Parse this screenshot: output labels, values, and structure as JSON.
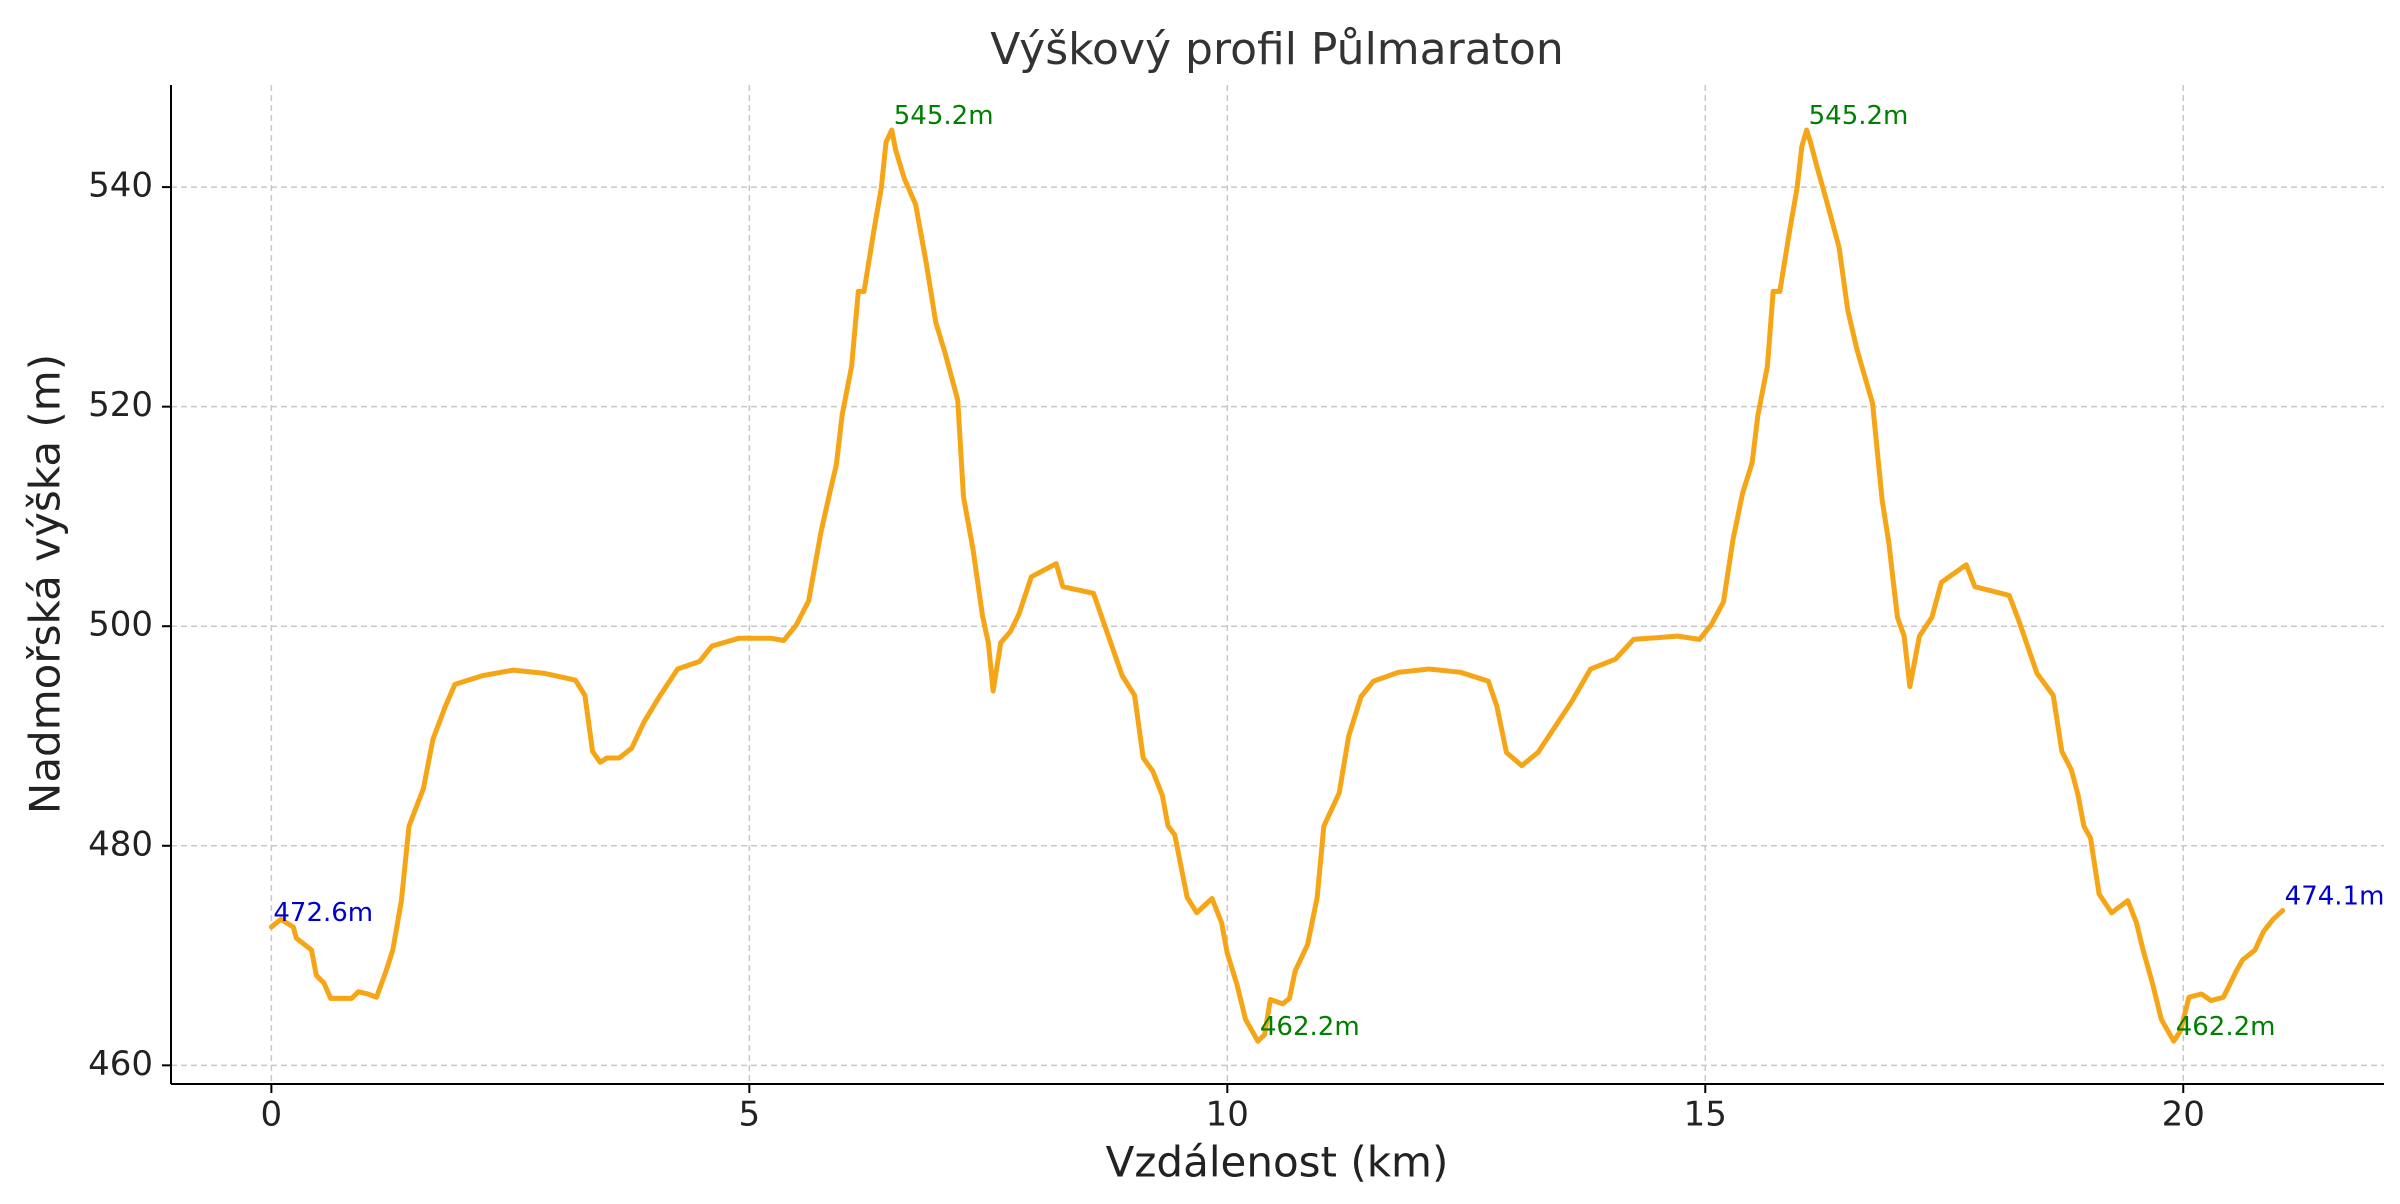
{
  "chart_data": {
    "type": "line",
    "title": "Výškový profil Půlmaraton",
    "xlabel": "Vzdálenost (km)",
    "ylabel": "Nadmořská výška (m)",
    "color": "#f5a516",
    "xlim": [
      -1.05,
      22.1
    ],
    "ylim": [
      458.3,
      549.3
    ],
    "xticks": [
      0,
      5,
      10,
      15,
      20
    ],
    "yticks": [
      460,
      480,
      500,
      520,
      540
    ],
    "grid": true,
    "x": [
      0,
      0.1,
      0.23,
      0.26,
      0.42,
      0.47,
      0.55,
      0.62,
      0.84,
      0.91,
      1.01,
      1.1,
      1.2,
      1.27,
      1.36,
      1.44,
      1.59,
      1.69,
      1.82,
      1.92,
      2.21,
      2.53,
      2.86,
      3.18,
      3.28,
      3.36,
      3.44,
      3.51,
      3.64,
      3.77,
      3.9,
      4.06,
      4.25,
      4.48,
      4.61,
      4.89,
      5.23,
      5.36,
      5.49,
      5.62,
      5.75,
      5.84,
      5.91,
      5.97,
      6.07,
      6.14,
      6.2,
      6.3,
      6.38,
      6.43,
      6.49,
      6.53,
      6.62,
      6.74,
      6.85,
      6.95,
      7.05,
      7.18,
      7.24,
      7.34,
      7.44,
      7.5,
      7.55,
      7.63,
      7.73,
      7.82,
      7.95,
      8.21,
      8.28,
      8.6,
      8.7,
      8.9,
      9.03,
      9.12,
      9.22,
      9.32,
      9.38,
      9.45,
      9.58,
      9.68,
      9.84,
      9.94,
      10.0,
      10.1,
      10.19,
      10.32,
      10.39,
      10.45,
      10.58,
      10.65,
      10.71,
      10.84,
      10.94,
      11.01,
      11.17,
      11.27,
      11.4,
      11.53,
      11.79,
      12.11,
      12.44,
      12.73,
      12.82,
      12.92,
      13.08,
      13.25,
      13.41,
      13.6,
      13.8,
      14.06,
      14.25,
      14.71,
      14.94,
      15.06,
      15.19,
      15.29,
      15.39,
      15.49,
      15.55,
      15.65,
      15.71,
      15.78,
      15.88,
      15.96,
      16.01,
      16.06,
      16.1,
      16.17,
      16.27,
      16.4,
      16.49,
      16.59,
      16.75,
      16.85,
      16.92,
      17.01,
      17.08,
      17.14,
      17.24,
      17.37,
      17.47,
      17.73,
      17.82,
      18.18,
      18.28,
      18.47,
      18.64,
      18.73,
      18.83,
      18.9,
      18.96,
      19.03,
      19.12,
      19.25,
      19.42,
      19.51,
      19.58,
      19.68,
      19.77,
      19.9,
      19.97,
      20.06,
      20.19,
      20.29,
      20.42,
      20.55,
      20.62,
      20.75,
      20.84,
      20.94,
      21.04
    ],
    "values": [
      472.6,
      473.3,
      472.6,
      471.6,
      470.5,
      468.2,
      467.5,
      466.1,
      466.1,
      466.7,
      466.5,
      466.2,
      468.6,
      470.5,
      475,
      481.8,
      485.2,
      489.7,
      492.7,
      494.7,
      495.5,
      496,
      495.7,
      495.1,
      493.7,
      488.6,
      487.6,
      488,
      488,
      488.9,
      491.3,
      493.6,
      496.1,
      496.8,
      498.2,
      498.9,
      498.9,
      498.7,
      500.1,
      502.3,
      508.6,
      512.1,
      514.7,
      519.2,
      523.7,
      530.5,
      530.5,
      535.9,
      539.9,
      544.1,
      545.2,
      543.4,
      540.8,
      538.4,
      533.1,
      527.7,
      524.8,
      520.6,
      511.8,
      507,
      500.9,
      498.5,
      494.1,
      498.5,
      499.5,
      501.1,
      504.5,
      505.7,
      503.6,
      503,
      500.5,
      495.5,
      493.7,
      488,
      486.8,
      484.6,
      481.8,
      481,
      475.3,
      473.9,
      475.2,
      473,
      470.2,
      467.4,
      464.2,
      462.2,
      462.8,
      466,
      465.6,
      466.1,
      468.6,
      471,
      475.3,
      481.8,
      484.8,
      490,
      493.6,
      495,
      495.8,
      496.1,
      495.8,
      495,
      492.7,
      488.5,
      487.3,
      488.5,
      490.6,
      493.1,
      496.1,
      497,
      498.8,
      499.1,
      498.8,
      500.1,
      502.2,
      507.9,
      512.1,
      514.9,
      519.2,
      523.7,
      530.5,
      530.5,
      535.9,
      539.9,
      543.7,
      545.2,
      544.1,
      541.8,
      538.7,
      534.5,
      528.8,
      525.1,
      520.3,
      511.5,
      507.6,
      500.8,
      499.1,
      494.5,
      499.1,
      500.8,
      504,
      505.6,
      503.6,
      502.8,
      500.5,
      495.7,
      493.7,
      488.6,
      486.9,
      484.6,
      481.8,
      480.7,
      475.6,
      473.9,
      475,
      473,
      470.5,
      467.4,
      464.2,
      462.2,
      463.1,
      466.2,
      466.5,
      465.9,
      466.2,
      468.5,
      469.6,
      470.5,
      472.2,
      473.3,
      474.1
    ],
    "annotations": [
      {
        "x": 0,
        "y": 472.6,
        "label": "472.6m",
        "color": "#0000cc"
      },
      {
        "x": 6.49,
        "y": 545.2,
        "label": "545.2m",
        "color": "#008000"
      },
      {
        "x": 16.06,
        "y": 545.2,
        "label": "545.2m",
        "color": "#008000"
      },
      {
        "x": 10.32,
        "y": 462.2,
        "label": "462.2m",
        "color": "#008000"
      },
      {
        "x": 19.9,
        "y": 462.2,
        "label": "462.2m",
        "color": "#008000"
      },
      {
        "x": 21.04,
        "y": 474.1,
        "label": "474.1m",
        "color": "#0000cc"
      }
    ]
  }
}
